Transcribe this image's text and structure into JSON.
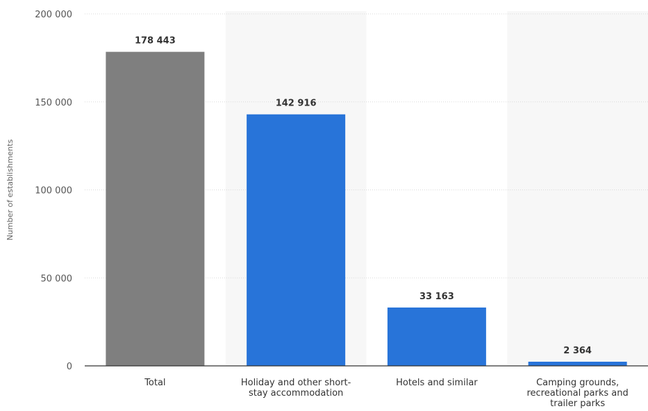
{
  "chart_data": {
    "type": "bar",
    "ylabel": "Number of establishments",
    "ylim": [
      0,
      200000
    ],
    "yticks": [
      0,
      50000,
      100000,
      150000,
      200000
    ],
    "ytick_labels": [
      "0",
      "50 000",
      "100 000",
      "150 000",
      "200 000"
    ],
    "grid": true,
    "categories": [
      [
        "Total"
      ],
      [
        "Holiday and other short-",
        "stay accommodation"
      ],
      [
        "Hotels and similar"
      ],
      [
        "Camping grounds,",
        "recreational parks and",
        "trailer parks"
      ]
    ],
    "values": [
      178443,
      142916,
      33163,
      2364
    ],
    "value_labels": [
      "178 443",
      "142 916",
      "33 163",
      "2 364"
    ],
    "colors": [
      "#7f7f7f",
      "#2874d9",
      "#2874d9",
      "#2874d9"
    ],
    "band_color": "#f7f7f7",
    "baseline_color": "#333333",
    "grid_color": "#d9d9d9"
  }
}
